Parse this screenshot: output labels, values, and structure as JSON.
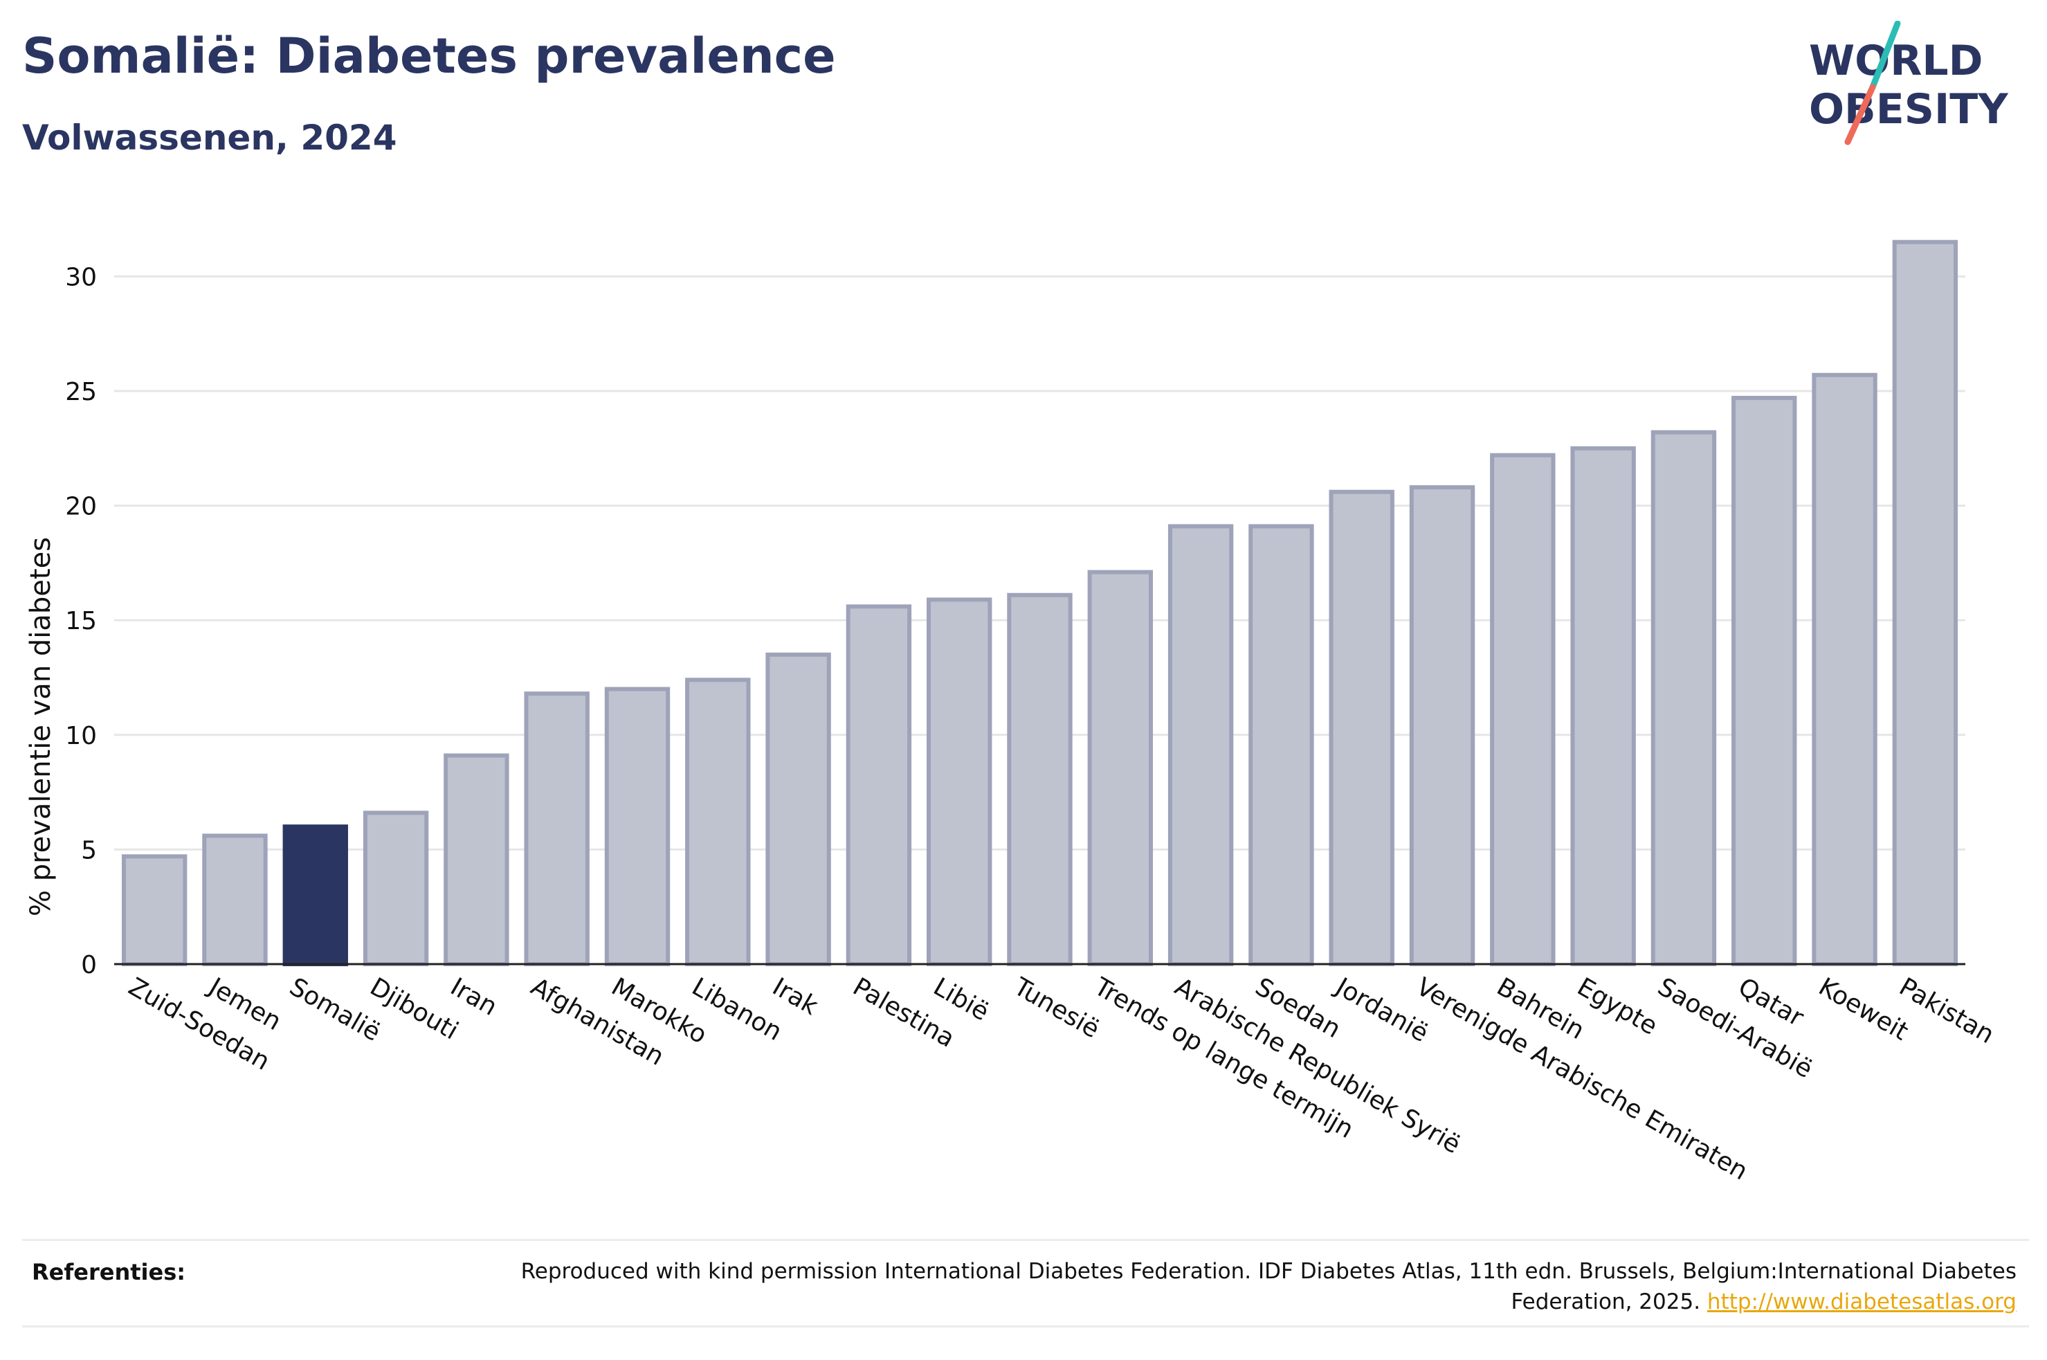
{
  "header": {
    "title": "Somalië: Diabetes prevalence",
    "subtitle": "Volwassenen, 2024"
  },
  "logo": {
    "line1": "WORLD",
    "line2": "OBESITY",
    "colors": {
      "text": "#2b3561",
      "slash_top": "#2bbdb5",
      "slash_bottom": "#ef6a5a"
    }
  },
  "colors": {
    "highlight_bar": "#2b3561",
    "bar_fill": "#bfc3cf",
    "bar_stroke": "#9ea3b9",
    "grid": "#e6e6e6",
    "axis": "#222222"
  },
  "chart_data": {
    "type": "bar",
    "ylabel": "% prevalentie van diabetes",
    "ylim": [
      0,
      33
    ],
    "yticks": [
      0,
      5,
      10,
      15,
      20,
      25,
      30
    ],
    "grid": true,
    "highlight": "Somalië",
    "categories": [
      "Zuid-Soedan",
      "Jemen",
      "Somalië",
      "Djibouti",
      "Iran",
      "Afghanistan",
      "Marokko",
      "Libanon",
      "Irak",
      "Palestina",
      "Libië",
      "Tunesië",
      "Trends op lange termijn",
      "Arabische Republiek Syrië",
      "Soedan",
      "Jordanië",
      "Verenigde Arabische Emiraten",
      "Bahrein",
      "Egypte",
      "Saoedi-Arabië",
      "Qatar",
      "Koeweit",
      "Pakistan"
    ],
    "values": [
      4.7,
      5.6,
      6.0,
      6.6,
      9.1,
      11.8,
      12.0,
      12.4,
      13.5,
      15.6,
      15.9,
      16.1,
      17.1,
      19.1,
      19.1,
      20.6,
      20.8,
      22.2,
      22.5,
      23.2,
      24.7,
      25.7,
      31.5
    ]
  },
  "references": {
    "label": "Referenties:",
    "text": "Reproduced with kind permission International Diabetes Federation. IDF Diabetes Atlas, 11th edn. Brussels, Belgium:International Diabetes Federation, 2025.",
    "link": "http://www.diabetesatlas.org"
  }
}
